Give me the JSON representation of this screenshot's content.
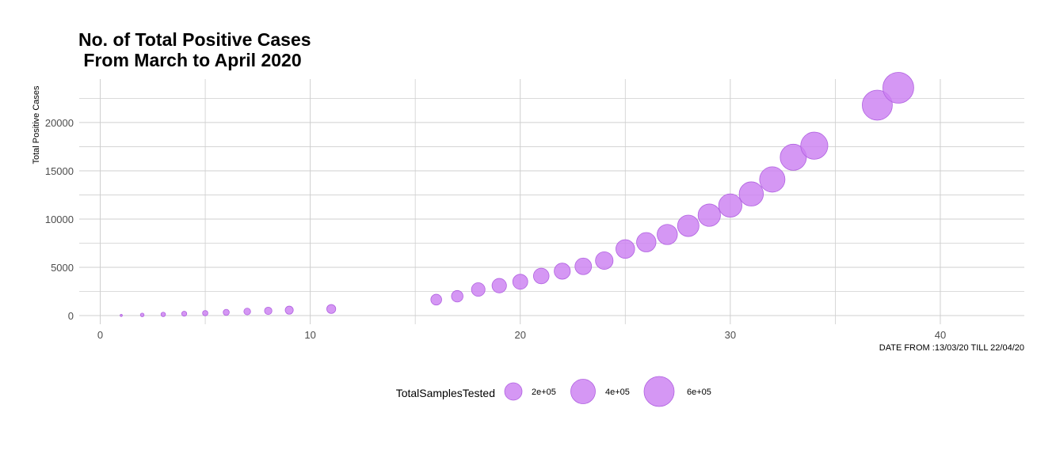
{
  "chart_data": {
    "type": "scatter",
    "title_line1": "No. of Total Positive Cases",
    "title_line2": " From March to April 2020",
    "xlabel": "",
    "ylabel": "Total Positive Cases",
    "caption": "DATE FROM :13/03/20 TILL 22/04/20",
    "xlim": [
      -1,
      44
    ],
    "ylim": [
      -900,
      24500
    ],
    "x_ticks": [
      0,
      10,
      20,
      30,
      40
    ],
    "y_ticks": [
      0,
      5000,
      10000,
      15000,
      20000
    ],
    "y_tick_labels": [
      "0",
      "5000",
      "10000",
      "15000",
      "20000"
    ],
    "grid": true,
    "point_color": "#cc80f2",
    "point_stroke": "#b061e0",
    "size_variable": "TotalSamplesTested",
    "legend": {
      "title": "TotalSamplesTested",
      "position": "bottom",
      "entries": [
        {
          "label": "2e+05",
          "value": 200000
        },
        {
          "label": "4e+05",
          "value": 400000
        },
        {
          "label": "6e+05",
          "value": 600000
        }
      ]
    },
    "points": [
      {
        "x": 1,
        "y": 20,
        "size": 3000
      },
      {
        "x": 2,
        "y": 70,
        "size": 8000
      },
      {
        "x": 3,
        "y": 120,
        "size": 12000
      },
      {
        "x": 4,
        "y": 190,
        "size": 15000
      },
      {
        "x": 5,
        "y": 250,
        "size": 17000
      },
      {
        "x": 6,
        "y": 330,
        "size": 22000
      },
      {
        "x": 7,
        "y": 420,
        "size": 27000
      },
      {
        "x": 8,
        "y": 490,
        "size": 33000
      },
      {
        "x": 9,
        "y": 560,
        "size": 39000
      },
      {
        "x": 11,
        "y": 680,
        "size": 48000
      },
      {
        "x": 16,
        "y": 1650,
        "size": 70000
      },
      {
        "x": 17,
        "y": 2000,
        "size": 80000
      },
      {
        "x": 18,
        "y": 2700,
        "size": 110000
      },
      {
        "x": 19,
        "y": 3100,
        "size": 125000
      },
      {
        "x": 20,
        "y": 3500,
        "size": 135000
      },
      {
        "x": 21,
        "y": 4100,
        "size": 145000
      },
      {
        "x": 22,
        "y": 4600,
        "size": 155000
      },
      {
        "x": 23,
        "y": 5100,
        "size": 165000
      },
      {
        "x": 24,
        "y": 5700,
        "size": 185000
      },
      {
        "x": 25,
        "y": 6900,
        "size": 210000
      },
      {
        "x": 26,
        "y": 7600,
        "size": 225000
      },
      {
        "x": 27,
        "y": 8400,
        "size": 245000
      },
      {
        "x": 28,
        "y": 9300,
        "size": 275000
      },
      {
        "x": 29,
        "y": 10400,
        "size": 300000
      },
      {
        "x": 30,
        "y": 11400,
        "size": 325000
      },
      {
        "x": 31,
        "y": 12600,
        "size": 350000
      },
      {
        "x": 32,
        "y": 14100,
        "size": 385000
      },
      {
        "x": 33,
        "y": 16400,
        "size": 410000
      },
      {
        "x": 34,
        "y": 17600,
        "size": 440000
      },
      {
        "x": 37,
        "y": 21800,
        "size": 540000
      },
      {
        "x": 38,
        "y": 23600,
        "size": 570000
      }
    ]
  }
}
